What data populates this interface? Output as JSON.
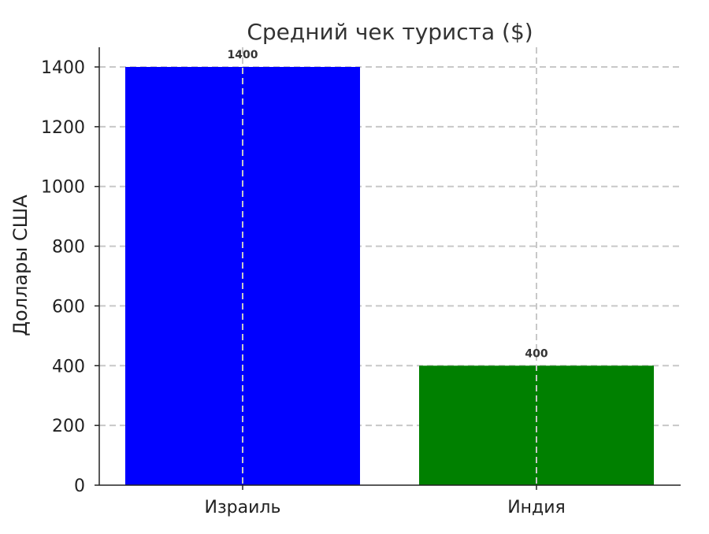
{
  "chart_data": {
    "type": "bar",
    "title": "Средний чек туриста ($)",
    "xlabel": "",
    "ylabel": "Доллары США",
    "categories": [
      "Израиль",
      "Индия"
    ],
    "values": [
      1400,
      400
    ],
    "colors": [
      "#0000ff",
      "#008000"
    ],
    "ylim": [
      0,
      1400
    ],
    "yticks": [
      0,
      200,
      400,
      600,
      800,
      1000,
      1200,
      1400
    ],
    "grid": true,
    "data_labels": [
      "1400",
      "400"
    ]
  }
}
